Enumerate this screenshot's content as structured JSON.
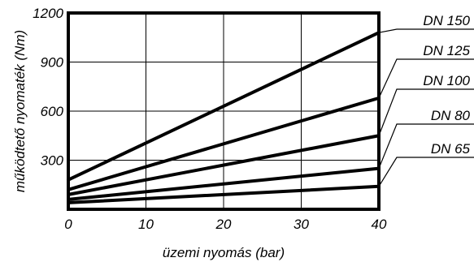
{
  "chart_data": {
    "type": "line",
    "title": "",
    "xlabel": "üzemi nyomás (bar)",
    "ylabel": "működtető nyomaték (Nm)",
    "xlim": [
      0,
      40
    ],
    "ylim": [
      0,
      1200
    ],
    "x_ticks": [
      "0",
      "10",
      "20",
      "30",
      "40"
    ],
    "y_ticks": [
      "300",
      "600",
      "900",
      "1200"
    ],
    "grid": true,
    "legend_placement": "right",
    "series": [
      {
        "name": "DN 150",
        "x": [
          0,
          40
        ],
        "y": [
          180,
          1080
        ]
      },
      {
        "name": "DN 125",
        "x": [
          0,
          40
        ],
        "y": [
          120,
          680
        ]
      },
      {
        "name": "DN 100",
        "x": [
          0,
          40
        ],
        "y": [
          90,
          450
        ]
      },
      {
        "name": "DN 80",
        "x": [
          0,
          40
        ],
        "y": [
          60,
          250
        ]
      },
      {
        "name": "DN 65",
        "x": [
          0,
          40
        ],
        "y": [
          40,
          140
        ]
      }
    ]
  }
}
